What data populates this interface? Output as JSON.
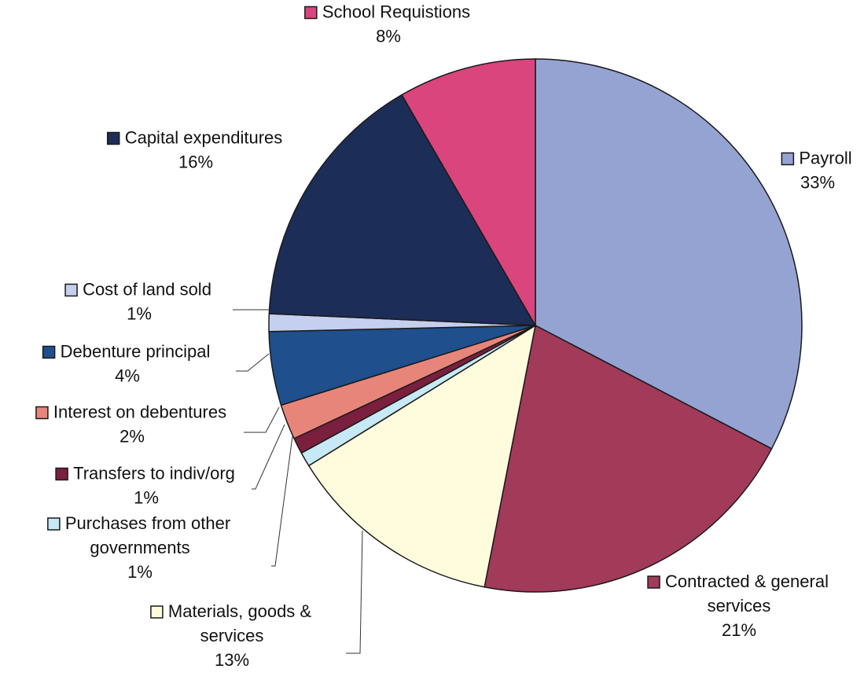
{
  "chart_data": {
    "type": "pie",
    "title": "",
    "slices": [
      {
        "label": "Payroll",
        "lines": [
          "Payroll"
        ],
        "percent_label": "33%",
        "value": 33.6,
        "color": "#94A3D2"
      },
      {
        "label": "Contracted & general services",
        "lines": [
          "Contracted & general",
          "services"
        ],
        "percent_label": "21%",
        "value": 21.0,
        "color": "#A23A5A"
      },
      {
        "label": "Materials, goods & services",
        "lines": [
          "Materials, goods &",
          "services"
        ],
        "percent_label": "13%",
        "value": 13.5,
        "color": "#FFFCDD"
      },
      {
        "label": "Purchases from other governments",
        "lines": [
          "Purchases from other",
          "governments"
        ],
        "percent_label": "1%",
        "value": 0.9,
        "color": "#C6E9F5"
      },
      {
        "label": "Transfers to indiv/org",
        "lines": [
          "Transfers to indiv/org"
        ],
        "percent_label": "1%",
        "value": 1.0,
        "color": "#7A1F3D"
      },
      {
        "label": "Interest on debentures",
        "lines": [
          "Interest on debentures"
        ],
        "percent_label": "2%",
        "value": 2.2,
        "color": "#E8857A"
      },
      {
        "label": "Debenture principal",
        "lines": [
          "Debenture principal"
        ],
        "percent_label": "4%",
        "value": 4.6,
        "color": "#1F4F8C"
      },
      {
        "label": "Cost of land sold",
        "lines": [
          "Cost of land sold"
        ],
        "percent_label": "1%",
        "value": 1.1,
        "color": "#C5CFEF"
      },
      {
        "label": "Capital expenditures",
        "lines": [
          "Capital expenditures"
        ],
        "percent_label": "16%",
        "value": 16.4,
        "color": "#1C2E57"
      },
      {
        "label": "School Requistions",
        "lines": [
          "School Requistions"
        ],
        "percent_label": "8%",
        "value": 8.6,
        "color": "#D9457C"
      }
    ]
  }
}
